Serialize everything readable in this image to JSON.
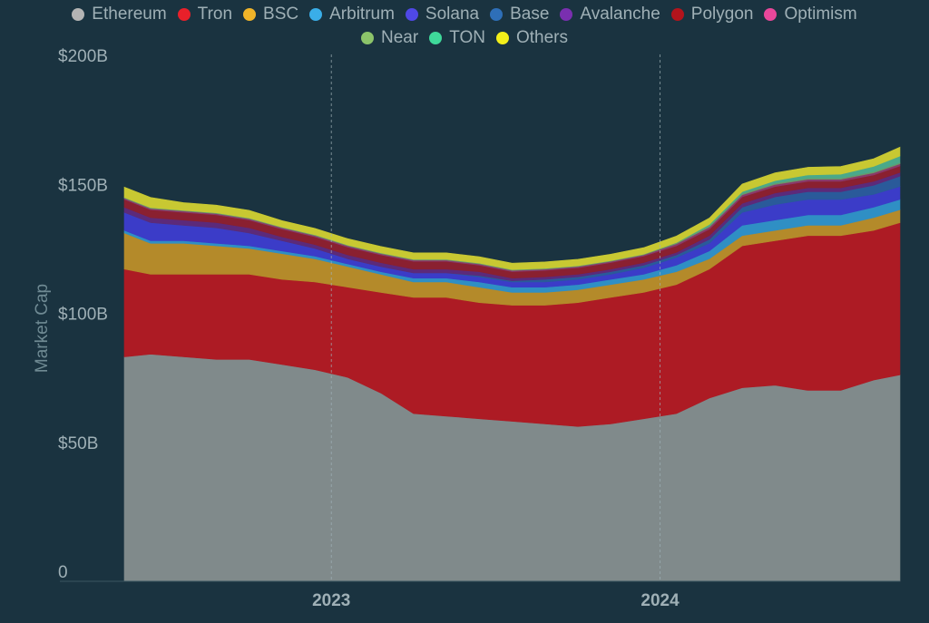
{
  "chart_data": {
    "type": "area",
    "stacked": true,
    "title": "",
    "xlabel": "",
    "ylabel": "Market Cap",
    "ylim": [
      0,
      200
    ],
    "y_unit": "B",
    "y_ticks": [
      {
        "value": 0,
        "label": "0"
      },
      {
        "value": 50,
        "label": "$50B"
      },
      {
        "value": 100,
        "label": "$100B"
      },
      {
        "value": 150,
        "label": "$150B"
      },
      {
        "value": 200,
        "label": "$200B"
      }
    ],
    "x_range": [
      2022.37,
      2024.73
    ],
    "x_ticks": [
      {
        "value": 2023.0,
        "label": "2023"
      },
      {
        "value": 2024.0,
        "label": "2024"
      }
    ],
    "x_gridlines": [
      2023.0,
      2024.0
    ],
    "legend_position": "top",
    "x": [
      2022.37,
      2022.45,
      2022.55,
      2022.65,
      2022.75,
      2022.85,
      2022.95,
      2023.05,
      2023.15,
      2023.25,
      2023.35,
      2023.45,
      2023.55,
      2023.65,
      2023.75,
      2023.85,
      2023.95,
      2024.05,
      2024.15,
      2024.25,
      2024.35,
      2024.45,
      2024.55,
      2024.65,
      2024.73
    ],
    "series": [
      {
        "name": "Ethereum",
        "color": "#b4b4b4",
        "fill": "#808a8b",
        "values": [
          87,
          88,
          87,
          86,
          86,
          84,
          82,
          79,
          73,
          65,
          64,
          63,
          62,
          61,
          60,
          61,
          63,
          65,
          71,
          75,
          76,
          74,
          74,
          78,
          80
        ]
      },
      {
        "name": "Tron",
        "color": "#e8202a",
        "fill": "#ad1b24",
        "values": [
          34,
          31,
          32,
          33,
          33,
          33,
          34,
          35,
          39,
          45,
          46,
          45,
          45,
          46,
          48,
          49,
          49,
          50,
          50,
          55,
          56,
          60,
          60,
          58,
          59
        ]
      },
      {
        "name": "BSC",
        "color": "#f0b429",
        "fill": "#b48a2a",
        "values": [
          14,
          12,
          12,
          11,
          10,
          10,
          9,
          8,
          7,
          6,
          6,
          6,
          5,
          5,
          5,
          5,
          5,
          5,
          4,
          4,
          4,
          4,
          4,
          5,
          5
        ]
      },
      {
        "name": "Arbitrum",
        "color": "#3aaee8",
        "fill": "#2f8fc4",
        "values": [
          1,
          1,
          1,
          1,
          1,
          1,
          1,
          1,
          1,
          1.5,
          1.5,
          2,
          2,
          2,
          2,
          2,
          2,
          2.5,
          3,
          4,
          4,
          4,
          4,
          4,
          4
        ]
      },
      {
        "name": "Solana",
        "color": "#4f48e6",
        "fill": "#3b3cc8",
        "values": [
          7,
          7,
          6,
          6,
          5,
          4,
          3,
          2,
          2,
          2,
          2,
          2,
          2,
          2,
          2,
          2,
          2.5,
          3,
          3,
          5,
          6,
          6,
          6,
          5,
          5
        ]
      },
      {
        "name": "Base",
        "color": "#2e6fb8",
        "fill": "#2a5a9a",
        "values": [
          0,
          0,
          0,
          0,
          0,
          0,
          0,
          0,
          0,
          0,
          0,
          0.5,
          0.5,
          1,
          1,
          1,
          1,
          1,
          1.5,
          2,
          3,
          3,
          3,
          3.5,
          4
        ]
      },
      {
        "name": "Avalanche",
        "color": "#7a2fb0",
        "fill": "#5c2a7a",
        "values": [
          2,
          2,
          2,
          2,
          2,
          1.5,
          1.5,
          1.5,
          1.5,
          1.5,
          1.5,
          1.5,
          1,
          1,
          1,
          1,
          1,
          1,
          1.5,
          1.5,
          1.5,
          1.5,
          1.5,
          1.5,
          1.5
        ]
      },
      {
        "name": "Polygon",
        "color": "#b3141c",
        "fill": "#8a2030",
        "values": [
          3,
          3,
          3,
          3,
          3,
          3,
          3,
          3,
          3,
          3,
          3,
          2.5,
          2.5,
          2.5,
          2.5,
          2.5,
          2.5,
          2.5,
          2.5,
          2.5,
          2.5,
          2.5,
          2.5,
          2.5,
          2.5
        ]
      },
      {
        "name": "Optimism",
        "color": "#e8479a",
        "fill": "#8a3a6a",
        "values": [
          0.5,
          0.5,
          0.5,
          0.5,
          0.5,
          0.5,
          0.5,
          0.5,
          0.5,
          0.5,
          0.5,
          0.5,
          0.5,
          0.5,
          0.5,
          0.5,
          0.5,
          0.8,
          0.8,
          0.8,
          0.8,
          0.8,
          0.8,
          0.8,
          0.8
        ]
      },
      {
        "name": "Near",
        "color": "#8cc46a",
        "fill": "#6a9a6a",
        "values": [
          0.3,
          0.3,
          0.3,
          0.3,
          0.3,
          0.3,
          0.3,
          0.3,
          0.3,
          0.3,
          0.3,
          0.3,
          0.3,
          0.3,
          0.3,
          0.3,
          0.3,
          0.5,
          0.5,
          0.5,
          0.5,
          0.5,
          0.5,
          0.5,
          0.5
        ]
      },
      {
        "name": "TON",
        "color": "#3fd99a",
        "fill": "#4aa98a",
        "values": [
          0,
          0,
          0,
          0,
          0,
          0,
          0,
          0,
          0,
          0,
          0,
          0,
          0,
          0,
          0,
          0,
          0,
          0,
          0.5,
          0.7,
          1,
          1.2,
          1.5,
          2,
          2.5
        ]
      },
      {
        "name": "Others",
        "color": "#f2ee1a",
        "fill": "#c8c832",
        "values": [
          4,
          4,
          3,
          3,
          3,
          2.5,
          2.5,
          2.5,
          2.5,
          2.5,
          2.5,
          2.5,
          2.5,
          2.5,
          2.5,
          2.5,
          2.5,
          2.5,
          2.5,
          3,
          3,
          3,
          3,
          3,
          3.5
        ]
      }
    ]
  }
}
